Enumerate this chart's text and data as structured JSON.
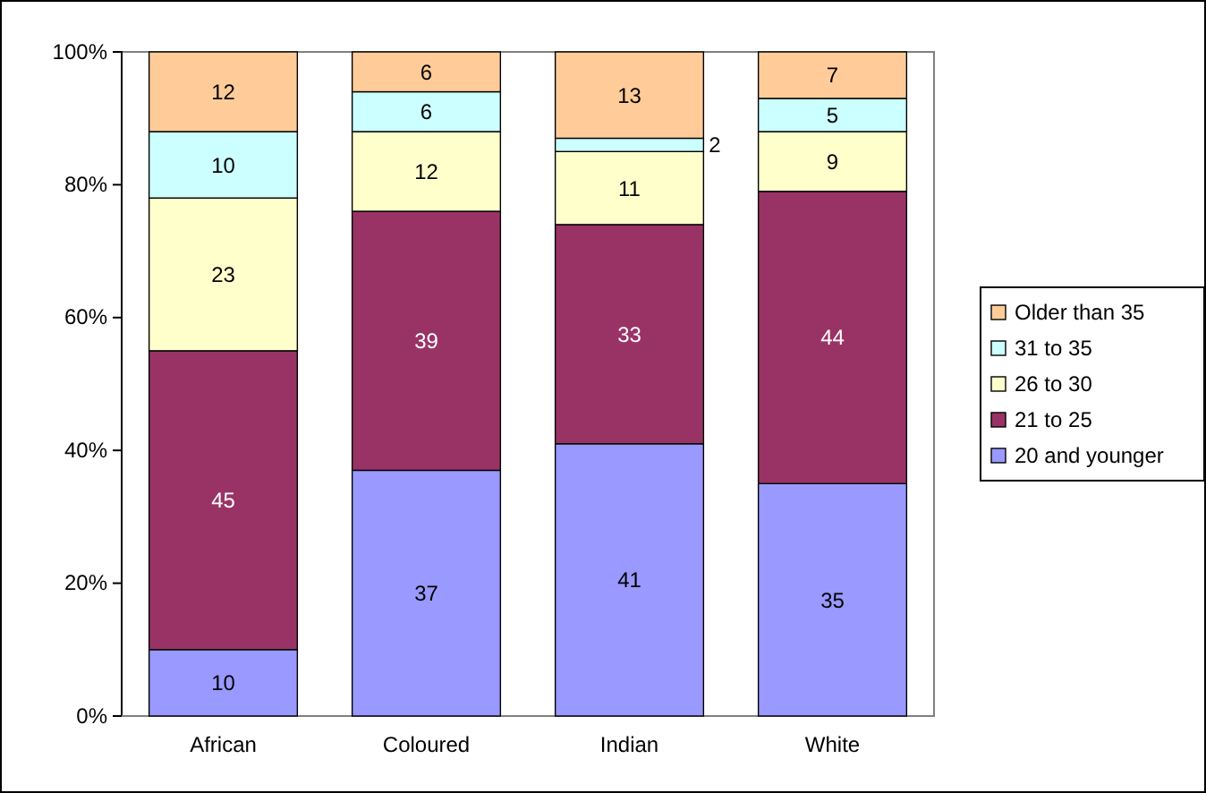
{
  "chart_data": {
    "type": "bar",
    "stacked": true,
    "categories": [
      "African",
      "Coloured",
      "Indian",
      "White"
    ],
    "series": [
      {
        "name": "20 and younger",
        "color": "#9999ff",
        "values": [
          10,
          37,
          41,
          35
        ]
      },
      {
        "name": "21 to 25",
        "color": "#993366",
        "values": [
          45,
          39,
          33,
          44
        ]
      },
      {
        "name": "26 to 30",
        "color": "#ffffcc",
        "values": [
          23,
          12,
          11,
          9
        ]
      },
      {
        "name": "31 to 35",
        "color": "#ccffff",
        "values": [
          10,
          6,
          2,
          5
        ]
      },
      {
        "name": "Older than 35",
        "color": "#ffcc99",
        "values": [
          12,
          6,
          13,
          7
        ]
      }
    ],
    "ylim": [
      0,
      100
    ],
    "yticks": [
      {
        "value": 0,
        "label": "0%"
      },
      {
        "value": 20,
        "label": "20%"
      },
      {
        "value": 40,
        "label": "40%"
      },
      {
        "value": 60,
        "label": "60%"
      },
      {
        "value": 80,
        "label": "80%"
      },
      {
        "value": 100,
        "label": "100%"
      }
    ],
    "data_labels": true,
    "legend": "right"
  }
}
